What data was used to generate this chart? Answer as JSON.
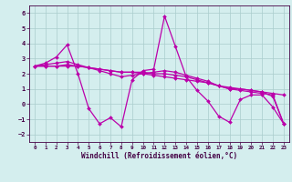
{
  "xlabel": "Windchill (Refroidissement éolien,°C)",
  "bg_color": "#d4eeee",
  "line_color": "#bb00aa",
  "grid_color": "#aacccc",
  "spine_color": "#440044",
  "xlim": [
    -0.5,
    23.5
  ],
  "ylim": [
    -2.5,
    6.5
  ],
  "yticks": [
    -2,
    -1,
    0,
    1,
    2,
    3,
    4,
    5,
    6
  ],
  "xticks": [
    0,
    1,
    2,
    3,
    4,
    5,
    6,
    7,
    8,
    9,
    10,
    11,
    12,
    13,
    14,
    15,
    16,
    17,
    18,
    19,
    20,
    21,
    22,
    23
  ],
  "series": [
    [
      2.5,
      2.7,
      3.1,
      3.9,
      2.0,
      -0.3,
      -1.3,
      -0.9,
      -1.5,
      1.6,
      2.2,
      2.3,
      5.8,
      3.8,
      1.8,
      0.9,
      0.2,
      -0.8,
      -1.2,
      0.3,
      0.6,
      0.6,
      -0.2,
      -1.3
    ],
    [
      2.5,
      2.5,
      2.5,
      2.5,
      2.5,
      2.4,
      2.3,
      2.2,
      2.1,
      2.1,
      2.0,
      1.9,
      1.8,
      1.7,
      1.6,
      1.5,
      1.4,
      1.2,
      1.1,
      1.0,
      0.9,
      0.8,
      0.7,
      0.6
    ],
    [
      2.5,
      2.6,
      2.7,
      2.8,
      2.6,
      2.4,
      2.2,
      2.0,
      1.8,
      1.9,
      2.0,
      2.1,
      2.2,
      2.1,
      1.9,
      1.7,
      1.5,
      1.2,
      1.0,
      1.0,
      0.9,
      0.8,
      0.5,
      -1.3
    ],
    [
      2.5,
      2.5,
      2.5,
      2.6,
      2.5,
      2.4,
      2.3,
      2.2,
      2.1,
      2.1,
      2.1,
      2.0,
      2.0,
      1.9,
      1.8,
      1.6,
      1.4,
      1.2,
      1.0,
      0.9,
      0.8,
      0.7,
      0.6,
      -1.3
    ]
  ],
  "xlabel_fontsize": 5.5,
  "tick_fontsize": 5.0,
  "linewidth": 0.9,
  "markersize": 2.0
}
